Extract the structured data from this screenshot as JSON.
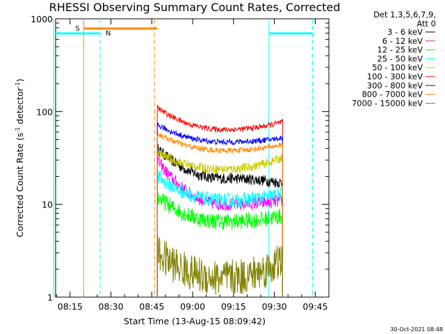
{
  "chart_data": {
    "type": "line",
    "title": "RHESSI Observing Summary Count Rates, Corrected",
    "xlabel": "Start Time (13-Aug-15 08:09:42)",
    "ylabel_main": "Corrected Count Rate (s",
    "ylabel_sup1": "-1",
    "ylabel_mid": " detector",
    "ylabel_sup2": "-1",
    "ylabel_end": ")",
    "ylabel": "Corrected Count Rate (s^-1 detector^-1)",
    "y_scale": "log",
    "ylim": [
      1,
      1000
    ],
    "xlim": [
      "08:09:42",
      "09:50:00"
    ],
    "xticks": [
      "08:15",
      "08:30",
      "08:45",
      "09:00",
      "09:15",
      "09:30",
      "09:45"
    ],
    "yticks": [
      "1",
      "10",
      "100",
      "1000"
    ],
    "grid": false,
    "legend_placement": "right",
    "legend_header": [
      "Det 1,3,5,6,7,9,",
      "Att 0"
    ],
    "timestamp": "30-Oct-2021 08:48",
    "data_start": "08:47",
    "data_end": "09:33",
    "series": [
      {
        "name": "3 - 6 keV",
        "color": "#000000",
        "start": 40,
        "min": 19,
        "end": 17,
        "noise": 0.06
      },
      {
        "name": "6 - 12 keV",
        "color": "#ff00ff",
        "start": 30,
        "min": 10,
        "end": 11,
        "noise": 0.07
      },
      {
        "name": "12 - 25 keV",
        "color": "#00ff00",
        "start": 12,
        "min": 6.5,
        "end": 7.5,
        "noise": 0.09
      },
      {
        "name": "25 - 50 keV",
        "color": "#00ffff",
        "start": 20,
        "min": 11,
        "end": 13,
        "noise": 0.08
      },
      {
        "name": "50 - 100 keV",
        "color": "#cccc00",
        "start": 36,
        "min": 24,
        "end": 32,
        "noise": 0.05
      },
      {
        "name": "100 - 300 keV",
        "color": "#ff0000",
        "start": 110,
        "min": 64,
        "end": 77,
        "noise": 0.03
      },
      {
        "name": "300 - 800 keV",
        "color": "#0000ff",
        "start": 72,
        "min": 47,
        "end": 52,
        "noise": 0.03
      },
      {
        "name": "800 - 7000 keV",
        "color": "#ff8800",
        "start": 58,
        "min": 38,
        "end": 44,
        "noise": 0.03
      },
      {
        "name": "7000 - 15000 keV",
        "color": "#808000",
        "start": 3,
        "min": 1.6,
        "end": 2.5,
        "noise": 0.2
      }
    ],
    "annotations": [
      {
        "text": "S",
        "color": "#ff8800",
        "kind": "saa",
        "span": [
          "08:20",
          "08:47"
        ]
      },
      {
        "text": "N",
        "color": "#00ffff",
        "kind": "night",
        "span": [
          "08:09",
          "08:26"
        ]
      },
      {
        "text": "",
        "color": "#00ffff",
        "kind": "night",
        "span": [
          "09:28",
          "09:44"
        ]
      }
    ],
    "vlines": [
      {
        "time": "08:09",
        "color": "#00ffff",
        "style": "solid"
      },
      {
        "time": "08:20",
        "color": "#ff8800",
        "style": "solid"
      },
      {
        "time": "08:26",
        "color": "#00ffff",
        "style": "dashed"
      },
      {
        "time": "08:46",
        "color": "#ff8800",
        "style": "dashed"
      },
      {
        "time": "09:28",
        "color": "#00ffff",
        "style": "solid"
      },
      {
        "time": "09:44",
        "color": "#00ffff",
        "style": "dashed"
      }
    ]
  }
}
